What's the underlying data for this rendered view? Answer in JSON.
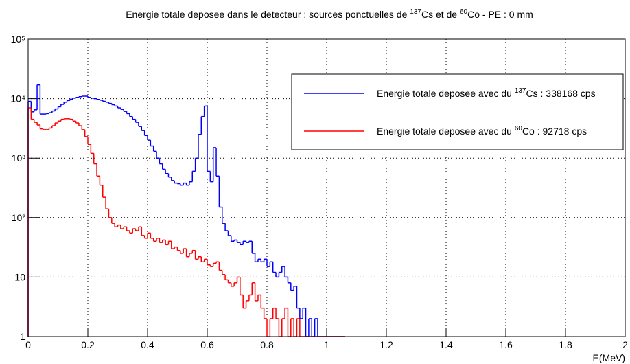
{
  "chart_data": {
    "type": "histogram",
    "title": "Energie totale deposee dans le detecteur : sources ponctuelles de 137Cs et de 60Co - PE : 0 mm",
    "x_label": "E(MeV)",
    "log_y": true,
    "grid": true,
    "legend": "upper right",
    "xlim": [
      0,
      2
    ],
    "ylim": [
      1,
      100000
    ],
    "xticks": [
      0,
      0.2,
      0.4,
      0.6,
      0.8,
      1,
      1.2,
      1.4,
      1.6,
      1.8,
      2
    ],
    "yticks": [
      1,
      10,
      {
        "value": 100,
        "label": "10²"
      },
      {
        "value": 1000,
        "label": "10³"
      },
      {
        "value": 10000,
        "label": "10⁴"
      },
      {
        "value": 100000,
        "label": "10⁵"
      }
    ],
    "bins": [
      0,
      0.01,
      0.02,
      0.03,
      0.04,
      0.05,
      0.06,
      0.07,
      0.08,
      0.09,
      0.1,
      0.11,
      0.12,
      0.13,
      0.14,
      0.15,
      0.16,
      0.17,
      0.18,
      0.19,
      0.2,
      0.21,
      0.22,
      0.23,
      0.24,
      0.25,
      0.26,
      0.27,
      0.28,
      0.29,
      0.3,
      0.31,
      0.32,
      0.33,
      0.34,
      0.35,
      0.36,
      0.37,
      0.38,
      0.39,
      0.4,
      0.41,
      0.42,
      0.43,
      0.44,
      0.45,
      0.46,
      0.47,
      0.48,
      0.49,
      0.5,
      0.51,
      0.52,
      0.53,
      0.54,
      0.55,
      0.56,
      0.57,
      0.58,
      0.59,
      0.6,
      0.61,
      0.62,
      0.63,
      0.64,
      0.65,
      0.66,
      0.67,
      0.68,
      0.69,
      0.7,
      0.71,
      0.72,
      0.73,
      0.74,
      0.75,
      0.76,
      0.77,
      0.78,
      0.79,
      0.8,
      0.81,
      0.82,
      0.83,
      0.84,
      0.85,
      0.86,
      0.87,
      0.88,
      0.89,
      0.9,
      0.91,
      0.92,
      0.93,
      0.94,
      0.95,
      0.96,
      0.97,
      0.98,
      0.99,
      1,
      1.01,
      1.02,
      1.03,
      1.04,
      1.05,
      1.06
    ],
    "series": [
      {
        "name": "Energie totale deposee avec du 137Cs : 338168 cps",
        "color": "#0000ff",
        "values": [
          9000,
          6000,
          6500,
          17000,
          5500,
          5500,
          5600,
          5800,
          6200,
          6700,
          7300,
          8000,
          8700,
          9300,
          9800,
          10200,
          10500,
          10800,
          11000,
          11000,
          10500,
          10200,
          10000,
          9700,
          9400,
          9000,
          8700,
          8300,
          7900,
          7500,
          7000,
          6600,
          6100,
          5600,
          5000,
          4500,
          4000,
          3400,
          2900,
          2400,
          2000,
          1600,
          1300,
          1000,
          800,
          650,
          550,
          480,
          420,
          380,
          370,
          350,
          380,
          350,
          400,
          600,
          1000,
          2500,
          5000,
          7500,
          600,
          400,
          1500,
          500,
          150,
          80,
          60,
          50,
          40,
          42,
          38,
          35,
          40,
          38,
          40,
          25,
          18,
          20,
          18,
          20,
          15,
          18,
          12,
          10,
          12,
          15,
          10,
          8,
          6,
          7,
          3,
          2,
          3,
          1,
          2,
          1,
          2,
          1,
          0,
          0,
          0,
          0,
          0,
          0,
          0,
          0
        ]
      },
      {
        "name": "Energie totale deposee avec du 60Co : 92718 cps",
        "color": "#ff0000",
        "values": [
          7000,
          4500,
          4000,
          3600,
          3100,
          3000,
          3000,
          3200,
          3500,
          3900,
          4200,
          4500,
          4600,
          4600,
          4500,
          4200,
          3900,
          3500,
          3000,
          2300,
          1700,
          1200,
          800,
          500,
          350,
          220,
          140,
          100,
          80,
          70,
          75,
          65,
          70,
          60,
          55,
          65,
          60,
          70,
          50,
          45,
          55,
          45,
          40,
          45,
          38,
          42,
          35,
          40,
          30,
          32,
          28,
          25,
          30,
          22,
          25,
          28,
          20,
          22,
          18,
          20,
          16,
          15,
          17,
          18,
          13,
          11,
          9,
          8,
          7,
          8,
          10,
          5,
          3,
          4,
          5,
          8,
          4,
          5,
          3,
          2,
          1,
          2,
          3,
          2,
          1,
          2,
          3,
          1,
          2,
          1,
          2,
          1,
          1,
          0,
          0,
          0,
          0,
          0,
          0,
          0,
          0,
          0,
          0,
          0,
          0,
          1
        ]
      }
    ]
  }
}
